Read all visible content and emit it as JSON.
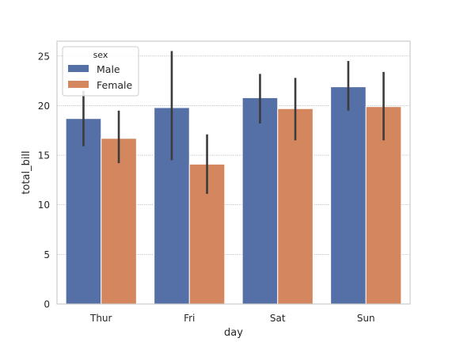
{
  "chart_data": {
    "type": "bar",
    "title": "",
    "xlabel": "day",
    "ylabel": "total_bill",
    "categories": [
      "Thur",
      "Fri",
      "Sat",
      "Sun"
    ],
    "ylim": [
      0,
      26.5
    ],
    "yticks": [
      0,
      5,
      10,
      15,
      20,
      25
    ],
    "grid": true,
    "legend": {
      "title": "sex",
      "placement": "top-left"
    },
    "series": [
      {
        "name": "Male",
        "color": "#5470a6",
        "values": [
          18.7,
          19.8,
          20.8,
          21.9
        ],
        "error_low": [
          15.9,
          14.5,
          18.2,
          19.5
        ],
        "error_high": [
          21.5,
          25.5,
          23.2,
          24.5
        ]
      },
      {
        "name": "Female",
        "color": "#d4865e",
        "values": [
          16.7,
          14.1,
          19.7,
          19.9
        ],
        "error_low": [
          14.2,
          11.1,
          16.5,
          16.5
        ],
        "error_high": [
          19.5,
          17.1,
          22.8,
          23.4
        ]
      }
    ]
  }
}
